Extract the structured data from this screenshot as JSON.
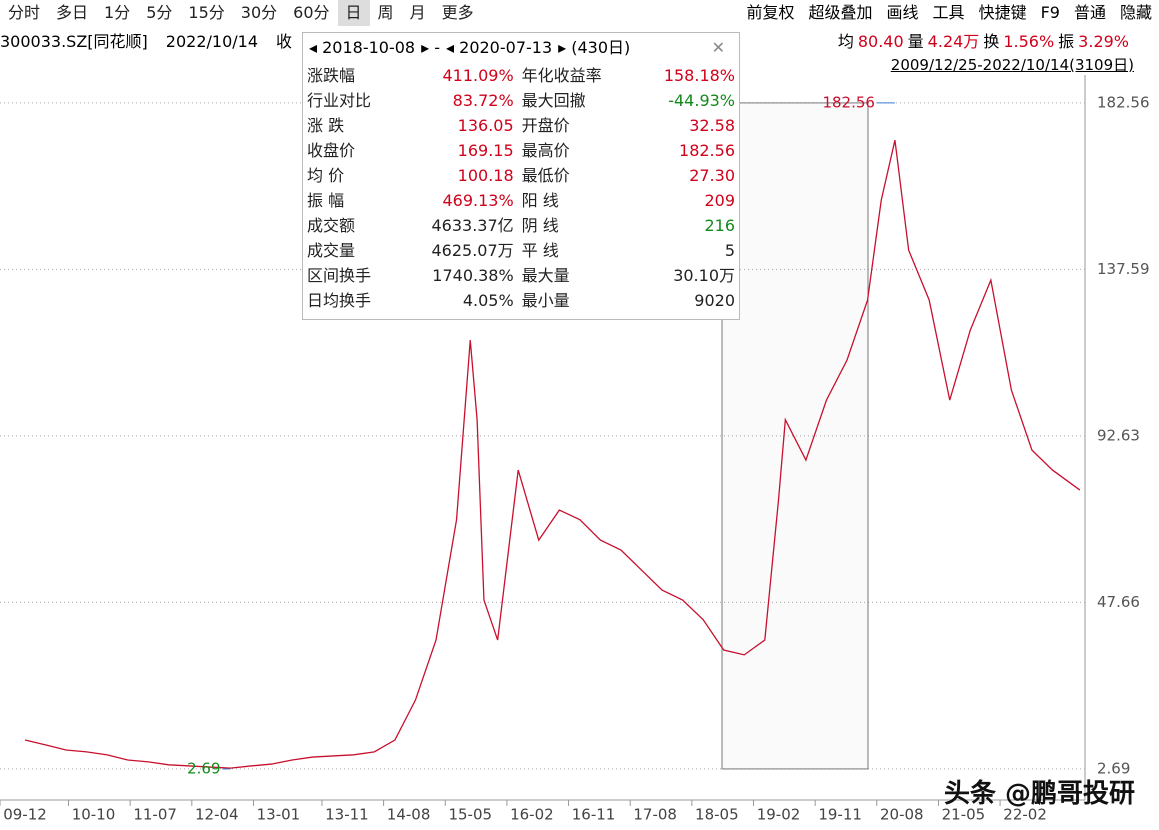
{
  "toolbar": {
    "left": [
      "分时",
      "多日",
      "1分",
      "5分",
      "15分",
      "30分",
      "60分",
      "日",
      "周",
      "月",
      "更多"
    ],
    "right": [
      "前复权",
      "超级叠加",
      "画线",
      "工具",
      "快捷键",
      "F9",
      "普通",
      "隐藏"
    ]
  },
  "info": {
    "code": "300033.SZ[同花顺]",
    "date": "2022/10/14",
    "cut": "收",
    "stats": [
      "均",
      "80.40",
      "量",
      "4.24万",
      "换",
      "1.56%",
      "振",
      "3.29%"
    ],
    "range": "2009/12/25-2022/10/14(3109日)"
  },
  "panel": {
    "start": "2018-10-08",
    "dash": "-",
    "end": "2020-07-13",
    "days": "(430日)",
    "rows": [
      [
        "涨跌幅",
        "411.09%",
        "年化收益率",
        "158.18%"
      ],
      [
        "行业对比",
        "83.72%",
        "最大回撤",
        "-44.93%"
      ],
      [
        "涨 跌",
        "136.05",
        "开盘价",
        "32.58"
      ],
      [
        "收盘价",
        "169.15",
        "最高价",
        "182.56"
      ],
      [
        "均 价",
        "100.18",
        "最低价",
        "27.30"
      ],
      [
        "振 幅",
        "469.13%",
        "阳 线",
        "209"
      ],
      [
        "成交额",
        "4633.37亿",
        "阴 线",
        "216"
      ],
      [
        "成交量",
        "4625.07万",
        "平 线",
        "5"
      ],
      [
        "区间换手",
        "1740.38%",
        "最大量",
        "30.10万"
      ],
      [
        "日均换手",
        "4.05%",
        "最小量",
        "9020"
      ]
    ]
  },
  "chart_data": {
    "type": "line",
    "ylim": [
      -5.7,
      190.1
    ],
    "yticks": [
      2.69,
      47.66,
      92.63,
      137.59,
      182.56
    ],
    "grid": true,
    "xticks": [
      "09-12",
      "10-10",
      "11-07",
      "12-04",
      "13-01",
      "13-11",
      "14-08",
      "15-05",
      "16-02",
      "16-11",
      "17-08",
      "18-05",
      "19-02",
      "19-11",
      "20-08",
      "21-05",
      "22-02"
    ],
    "x": [
      "09-12",
      "10-03",
      "10-06",
      "10-09",
      "10-12",
      "11-03",
      "11-06",
      "11-09",
      "11-12",
      "12-03",
      "12-06",
      "12-09",
      "12-12",
      "13-03",
      "13-06",
      "13-09",
      "13-12",
      "14-03",
      "14-06",
      "14-09",
      "14-12",
      "15-03",
      "15-05",
      "15-06",
      "15-07",
      "15-09",
      "15-12",
      "16-03",
      "16-06",
      "16-09",
      "16-12",
      "17-03",
      "17-06",
      "17-09",
      "17-12",
      "18-03",
      "18-06",
      "18-09",
      "18-12",
      "19-02",
      "19-03",
      "19-06",
      "19-09",
      "19-12",
      "20-03",
      "20-05",
      "20-07",
      "20-09",
      "20-12",
      "21-03",
      "21-06",
      "21-09",
      "21-12",
      "22-03",
      "22-06",
      "22-10"
    ],
    "series": [
      {
        "color": "#c8102e",
        "values": [
          10.5,
          9.2,
          7.8,
          7.3,
          6.5,
          5.1,
          4.6,
          3.8,
          3.5,
          3.2,
          2.9,
          3.5,
          4.0,
          5.1,
          5.9,
          6.2,
          6.5,
          7.3,
          10.5,
          21.3,
          37.5,
          70,
          118.5,
          97,
          48.3,
          37.5,
          83.4,
          64.5,
          72.6,
          70,
          64.5,
          61.8,
          56.4,
          51,
          48.3,
          43,
          34.8,
          33.5,
          37.5,
          75.3,
          97,
          86.1,
          102.3,
          113.1,
          129.3,
          156.3,
          172.5,
          142.8,
          129.3,
          102.3,
          121.2,
          134.7,
          105,
          88.8,
          83.4,
          78
        ]
      }
    ],
    "annotations": [
      {
        "text": "182.56",
        "x": "20-07",
        "y": 182.56
      },
      {
        "text": "2.69",
        "x": "12-06",
        "y": 2.69
      }
    ]
  },
  "watermark": "头条 @鹏哥投研"
}
